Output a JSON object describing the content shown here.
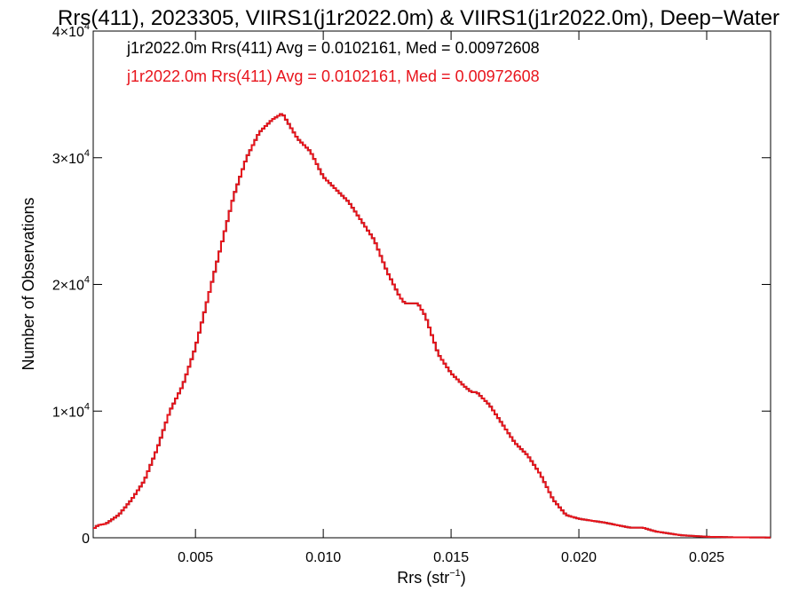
{
  "chart_data": {
    "type": "line",
    "title": "Rrs(411), 2023305, VIIRS1(j1r2022.0m) & VIIRS1(j1r2022.0m), Deep−Water",
    "xlabel_base": "Rrs (str",
    "xlabel_sup": "−1",
    "xlabel_end": ")",
    "ylabel": "Number of Observations",
    "xlim": [
      0.001,
      0.0275
    ],
    "ylim": [
      0,
      40000
    ],
    "x_ticks": [
      {
        "value": 0.005,
        "label": "0.005"
      },
      {
        "value": 0.01,
        "label": "0.010"
      },
      {
        "value": 0.015,
        "label": "0.015"
      },
      {
        "value": 0.02,
        "label": "0.020"
      },
      {
        "value": 0.025,
        "label": "0.025"
      }
    ],
    "y_ticks": [
      {
        "value": 0,
        "base": "0",
        "exp": ""
      },
      {
        "value": 10000,
        "base": "1×10",
        "exp": "4"
      },
      {
        "value": 20000,
        "base": "2×10",
        "exp": "4"
      },
      {
        "value": 30000,
        "base": "3×10",
        "exp": "4"
      },
      {
        "value": 40000,
        "base": "4×10",
        "exp": "4"
      }
    ],
    "bin_width": 0.0001,
    "series": [
      {
        "name": "j1r2022.0m Rrs(411) Avg = 0.0102161, Med = 0.00972608",
        "color": "#000000",
        "profile": [
          [
            0.001,
            700
          ],
          [
            0.0012,
            1000
          ],
          [
            0.0015,
            1100
          ],
          [
            0.002,
            1800
          ],
          [
            0.0025,
            3000
          ],
          [
            0.003,
            4500
          ],
          [
            0.0035,
            7000
          ],
          [
            0.004,
            10000
          ],
          [
            0.0045,
            12000
          ],
          [
            0.005,
            15000
          ],
          [
            0.0055,
            19000
          ],
          [
            0.006,
            23000
          ],
          [
            0.0065,
            27000
          ],
          [
            0.007,
            30000
          ],
          [
            0.0075,
            32000
          ],
          [
            0.008,
            33000
          ],
          [
            0.0084,
            33500
          ],
          [
            0.0087,
            32500
          ],
          [
            0.009,
            31500
          ],
          [
            0.0095,
            30500
          ],
          [
            0.01,
            28500
          ],
          [
            0.0105,
            27500
          ],
          [
            0.011,
            26500
          ],
          [
            0.0115,
            25000
          ],
          [
            0.012,
            23500
          ],
          [
            0.0125,
            21000
          ],
          [
            0.013,
            19000
          ],
          [
            0.0132,
            18500
          ],
          [
            0.0137,
            18500
          ],
          [
            0.014,
            17500
          ],
          [
            0.0145,
            14500
          ],
          [
            0.015,
            13000
          ],
          [
            0.0155,
            12000
          ],
          [
            0.0158,
            11500
          ],
          [
            0.016,
            11500
          ],
          [
            0.0165,
            10500
          ],
          [
            0.017,
            9000
          ],
          [
            0.0175,
            7500
          ],
          [
            0.018,
            6500
          ],
          [
            0.0185,
            5000
          ],
          [
            0.019,
            3000
          ],
          [
            0.0195,
            1800
          ],
          [
            0.02,
            1500
          ],
          [
            0.021,
            1200
          ],
          [
            0.022,
            800
          ],
          [
            0.0225,
            800
          ],
          [
            0.023,
            500
          ],
          [
            0.024,
            200
          ],
          [
            0.025,
            80
          ],
          [
            0.026,
            40
          ],
          [
            0.0275,
            20
          ]
        ]
      },
      {
        "name": "j1r2022.0m Rrs(411) Avg = 0.0102161, Med = 0.00972608",
        "color": "#e8141c",
        "profile": [
          [
            0.001,
            700
          ],
          [
            0.0012,
            1000
          ],
          [
            0.0015,
            1100
          ],
          [
            0.002,
            1800
          ],
          [
            0.0025,
            3000
          ],
          [
            0.003,
            4500
          ],
          [
            0.0035,
            7000
          ],
          [
            0.004,
            10000
          ],
          [
            0.0045,
            12000
          ],
          [
            0.005,
            15000
          ],
          [
            0.0055,
            19000
          ],
          [
            0.006,
            23000
          ],
          [
            0.0065,
            27000
          ],
          [
            0.007,
            30000
          ],
          [
            0.0075,
            32000
          ],
          [
            0.008,
            33000
          ],
          [
            0.0084,
            33500
          ],
          [
            0.0087,
            32500
          ],
          [
            0.009,
            31500
          ],
          [
            0.0095,
            30500
          ],
          [
            0.01,
            28500
          ],
          [
            0.0105,
            27500
          ],
          [
            0.011,
            26500
          ],
          [
            0.0115,
            25000
          ],
          [
            0.012,
            23500
          ],
          [
            0.0125,
            21000
          ],
          [
            0.013,
            19000
          ],
          [
            0.0132,
            18500
          ],
          [
            0.0137,
            18500
          ],
          [
            0.014,
            17500
          ],
          [
            0.0145,
            14500
          ],
          [
            0.015,
            13000
          ],
          [
            0.0155,
            12000
          ],
          [
            0.0158,
            11500
          ],
          [
            0.016,
            11500
          ],
          [
            0.0165,
            10500
          ],
          [
            0.017,
            9000
          ],
          [
            0.0175,
            7500
          ],
          [
            0.018,
            6500
          ],
          [
            0.0185,
            5000
          ],
          [
            0.019,
            3000
          ],
          [
            0.0195,
            1800
          ],
          [
            0.02,
            1500
          ],
          [
            0.021,
            1200
          ],
          [
            0.022,
            800
          ],
          [
            0.0225,
            800
          ],
          [
            0.023,
            500
          ],
          [
            0.024,
            200
          ],
          [
            0.025,
            80
          ],
          [
            0.026,
            40
          ],
          [
            0.0275,
            20
          ]
        ]
      }
    ]
  }
}
